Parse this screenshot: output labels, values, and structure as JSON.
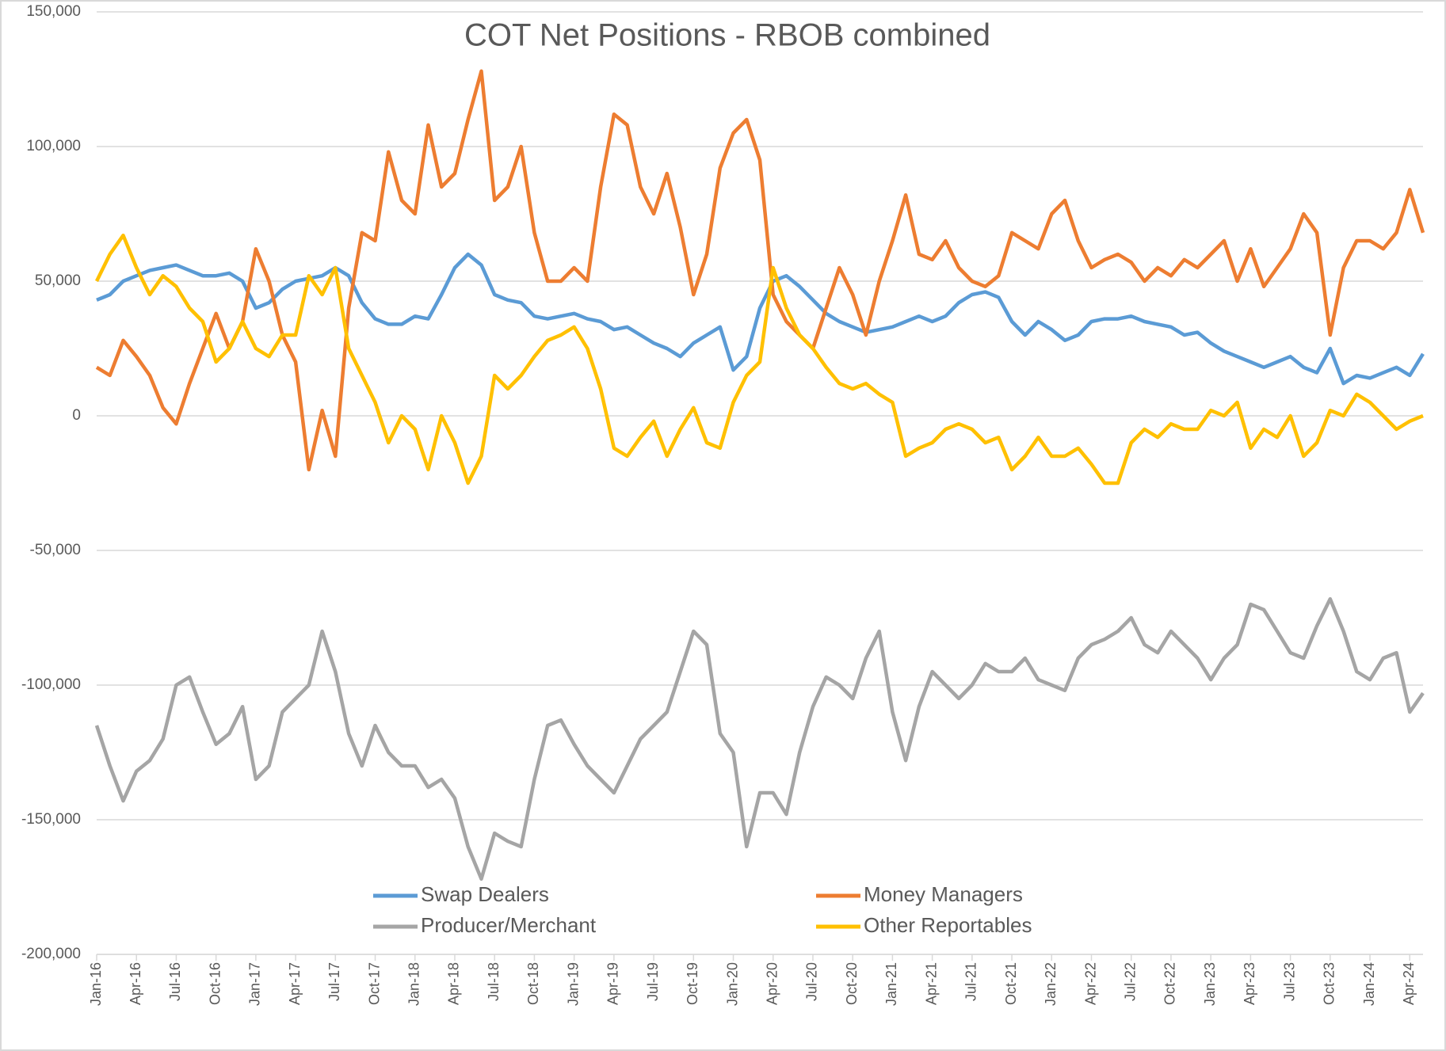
{
  "chart_data": {
    "type": "line",
    "title": "COT Net Positions - RBOB combined",
    "categories": [
      "Jan-16",
      null,
      null,
      "Apr-16",
      null,
      null,
      "Jul-16",
      null,
      null,
      "Oct-16",
      null,
      null,
      "Jan-17",
      null,
      null,
      "Apr-17",
      null,
      null,
      "Jul-17",
      null,
      null,
      "Oct-17",
      null,
      null,
      "Jan-18",
      null,
      null,
      "Apr-18",
      null,
      null,
      "Jul-18",
      null,
      null,
      "Oct-18",
      null,
      null,
      "Jan-19",
      null,
      null,
      "Apr-19",
      null,
      null,
      "Jul-19",
      null,
      null,
      "Oct-19",
      null,
      null,
      "Jan-20",
      null,
      null,
      "Apr-20",
      null,
      null,
      "Jul-20",
      null,
      null,
      "Oct-20",
      null,
      null,
      "Jan-21",
      null,
      null,
      "Apr-21",
      null,
      null,
      "Jul-21",
      null,
      null,
      "Oct-21",
      null,
      null,
      "Jan-22",
      null,
      null,
      "Apr-22",
      null,
      null,
      "Jul-22",
      null,
      null,
      "Oct-22",
      null,
      null,
      "Jan-23",
      null,
      null,
      "Apr-23",
      null,
      null,
      "Jul-23",
      null,
      null,
      "Oct-23",
      null,
      null,
      "Jan-24",
      null,
      null,
      "Apr-24",
      null
    ],
    "series": [
      {
        "name": "Swap Dealers",
        "color": "#5b9bd5",
        "values": [
          43000,
          45000,
          50000,
          52000,
          54000,
          55000,
          56000,
          54000,
          52000,
          52000,
          53000,
          50000,
          40000,
          42000,
          47000,
          50000,
          51000,
          52000,
          55000,
          52000,
          42000,
          36000,
          34000,
          34000,
          37000,
          36000,
          45000,
          55000,
          60000,
          56000,
          45000,
          43000,
          42000,
          37000,
          36000,
          37000,
          38000,
          36000,
          35000,
          32000,
          33000,
          30000,
          27000,
          25000,
          22000,
          27000,
          30000,
          33000,
          17000,
          22000,
          40000,
          50000,
          52000,
          48000,
          43000,
          38000,
          35000,
          33000,
          31000,
          32000,
          33000,
          35000,
          37000,
          35000,
          37000,
          42000,
          45000,
          46000,
          44000,
          35000,
          30000,
          35000,
          32000,
          28000,
          30000,
          35000,
          36000,
          36000,
          37000,
          35000,
          34000,
          33000,
          30000,
          31000,
          27000,
          24000,
          22000,
          20000,
          18000,
          20000,
          22000,
          18000,
          16000,
          25000,
          12000,
          15000,
          14000,
          16000,
          18000,
          15000,
          23000
        ]
      },
      {
        "name": "Money Managers",
        "color": "#ed7d31",
        "values": [
          18000,
          15000,
          28000,
          22000,
          15000,
          3000,
          -3000,
          12000,
          25000,
          38000,
          25000,
          35000,
          62000,
          50000,
          30000,
          20000,
          -20000,
          2000,
          -15000,
          40000,
          68000,
          65000,
          98000,
          80000,
          75000,
          108000,
          85000,
          90000,
          110000,
          128000,
          80000,
          85000,
          100000,
          68000,
          50000,
          50000,
          55000,
          50000,
          85000,
          112000,
          108000,
          85000,
          75000,
          90000,
          70000,
          45000,
          60000,
          92000,
          105000,
          110000,
          95000,
          45000,
          35000,
          30000,
          25000,
          40000,
          55000,
          45000,
          30000,
          50000,
          65000,
          82000,
          60000,
          58000,
          65000,
          55000,
          50000,
          48000,
          52000,
          68000,
          65000,
          62000,
          75000,
          80000,
          65000,
          55000,
          58000,
          60000,
          57000,
          50000,
          55000,
          52000,
          58000,
          55000,
          60000,
          65000,
          50000,
          62000,
          48000,
          55000,
          62000,
          75000,
          68000,
          30000,
          55000,
          65000,
          65000,
          62000,
          68000,
          84000,
          68000
        ]
      },
      {
        "name": "Producer/Merchant",
        "color": "#a5a5a5",
        "values": [
          -115000,
          -130000,
          -143000,
          -132000,
          -128000,
          -120000,
          -100000,
          -97000,
          -110000,
          -122000,
          -118000,
          -108000,
          -135000,
          -130000,
          -110000,
          -105000,
          -100000,
          -80000,
          -95000,
          -118000,
          -130000,
          -115000,
          -125000,
          -130000,
          -130000,
          -138000,
          -135000,
          -142000,
          -160000,
          -172000,
          -155000,
          -158000,
          -160000,
          -135000,
          -115000,
          -113000,
          -122000,
          -130000,
          -135000,
          -140000,
          -130000,
          -120000,
          -115000,
          -110000,
          -95000,
          -80000,
          -85000,
          -118000,
          -125000,
          -160000,
          -140000,
          -140000,
          -148000,
          -125000,
          -108000,
          -97000,
          -100000,
          -105000,
          -90000,
          -80000,
          -110000,
          -128000,
          -108000,
          -95000,
          -100000,
          -105000,
          -100000,
          -92000,
          -95000,
          -95000,
          -90000,
          -98000,
          -100000,
          -102000,
          -90000,
          -85000,
          -83000,
          -80000,
          -75000,
          -85000,
          -88000,
          -80000,
          -85000,
          -90000,
          -98000,
          -90000,
          -85000,
          -70000,
          -72000,
          -80000,
          -88000,
          -90000,
          -78000,
          -68000,
          -80000,
          -95000,
          -98000,
          -90000,
          -88000,
          -110000,
          -103000
        ]
      },
      {
        "name": "Other Reportables",
        "color": "#ffc000",
        "values": [
          50000,
          60000,
          67000,
          55000,
          45000,
          52000,
          48000,
          40000,
          35000,
          20000,
          25000,
          35000,
          25000,
          22000,
          30000,
          30000,
          52000,
          45000,
          55000,
          25000,
          15000,
          5000,
          -10000,
          0,
          -5000,
          -20000,
          0,
          -10000,
          -25000,
          -15000,
          15000,
          10000,
          15000,
          22000,
          28000,
          30000,
          33000,
          25000,
          10000,
          -12000,
          -15000,
          -8000,
          -2000,
          -15000,
          -5000,
          3000,
          -10000,
          -12000,
          5000,
          15000,
          20000,
          55000,
          40000,
          30000,
          25000,
          18000,
          12000,
          10000,
          12000,
          8000,
          5000,
          -15000,
          -12000,
          -10000,
          -5000,
          -3000,
          -5000,
          -10000,
          -8000,
          -20000,
          -15000,
          -8000,
          -15000,
          -15000,
          -12000,
          -18000,
          -25000,
          -25000,
          -10000,
          -5000,
          -8000,
          -3000,
          -5000,
          -5000,
          2000,
          0,
          5000,
          -12000,
          -5000,
          -8000,
          0,
          -15000,
          -10000,
          2000,
          0,
          8000,
          5000,
          0,
          -5000,
          -2000,
          0
        ]
      }
    ],
    "ylim": [
      -200000,
      150000
    ],
    "yticks": [
      {
        "value": -200000,
        "label": "-200,000"
      },
      {
        "value": -150000,
        "label": "-150,000"
      },
      {
        "value": -100000,
        "label": "-100,000"
      },
      {
        "value": -50000,
        "label": "-50,000"
      },
      0,
      {
        "value": 50000,
        "label": "50,000"
      },
      {
        "value": 100000,
        "label": "100,000"
      },
      {
        "value": 150000,
        "label": "150,000"
      }
    ],
    "grid": true,
    "legend": "bottom"
  }
}
